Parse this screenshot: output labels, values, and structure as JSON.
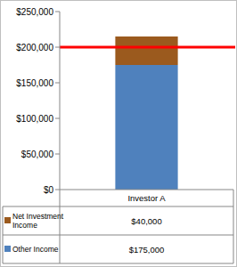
{
  "chart_data": {
    "type": "bar",
    "stacked": true,
    "categories": [
      "Investor A"
    ],
    "series": [
      {
        "name": "Net Investment Income",
        "color": "#9b5a1e",
        "values": [
          40000
        ],
        "value_labels": [
          "$40,000"
        ]
      },
      {
        "name": "Other Income",
        "color": "#4f81bd",
        "values": [
          175000
        ],
        "value_labels": [
          "$175,000"
        ]
      }
    ],
    "ylim": [
      0,
      250000
    ],
    "yticks": [
      {
        "value": 0,
        "label": "$0"
      },
      {
        "value": 50000,
        "label": "$50,000"
      },
      {
        "value": 100000,
        "label": "$100,000"
      },
      {
        "value": 150000,
        "label": "$150,000"
      },
      {
        "value": 200000,
        "label": "$200,000"
      },
      {
        "value": 250000,
        "label": "$250,000"
      }
    ],
    "reference_line": {
      "value": 200000,
      "color": "#ff0000"
    },
    "grid": false
  }
}
